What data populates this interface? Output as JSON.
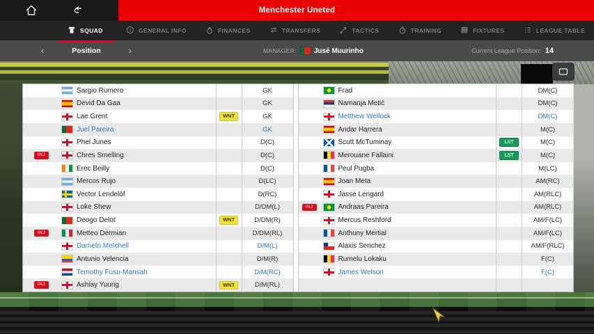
{
  "colors": {
    "brand_red": "#ea0000",
    "accent_red": "#d40c28",
    "link_blue": "#2f7ab8",
    "badge_yellow": "#f2e33c",
    "badge_green": "#17995b",
    "badge_red": "#cf1420"
  },
  "topbar": {
    "title": "Menchester Uneted"
  },
  "tabs": [
    {
      "id": "squad",
      "label": "SQUAD",
      "icon": "shirt",
      "active": true
    },
    {
      "id": "general-info",
      "label": "GENERAL INFO",
      "icon": "info",
      "active": false
    },
    {
      "id": "finances",
      "label": "FINANCES",
      "icon": "moneybag",
      "active": false
    },
    {
      "id": "transfers",
      "label": "TRANSFERS",
      "icon": "transfer-arrows",
      "active": false
    },
    {
      "id": "tactics",
      "label": "TACTICS",
      "icon": "tactics-arrows",
      "active": false
    },
    {
      "id": "training",
      "label": "TRAINING",
      "icon": "stopwatch",
      "active": false
    },
    {
      "id": "fixtures",
      "label": "FIXTURES",
      "icon": "stacked-list",
      "active": false
    },
    {
      "id": "league-table",
      "label": "LEAGUE TABLE",
      "icon": "bullet-list",
      "active": false
    }
  ],
  "subheader": {
    "prev": "‹",
    "pager_label": "Position",
    "next": "›",
    "manager_label": "MANAGER:",
    "manager_nation": "portugal",
    "manager_name": "Jusé Muurinho",
    "league_label": "Current League Position:",
    "league_value": "14"
  },
  "badges": {
    "wanted": "WNT",
    "listed": "LST",
    "injured": "INJ"
  },
  "squad": {
    "left": [
      {
        "name": "Sargio Rumero",
        "nation": "argentina",
        "pos": "GK",
        "badge": null,
        "status": null,
        "link": false
      },
      {
        "name": "Devid Da Gaa",
        "nation": "spain",
        "pos": "GK",
        "badge": null,
        "status": null,
        "link": false
      },
      {
        "name": "Lae Grent",
        "nation": "england",
        "pos": "GK",
        "badge": "WNT",
        "status": null,
        "link": false
      },
      {
        "name": "Juel Pareira",
        "nation": "portugal",
        "pos": "GK",
        "badge": null,
        "status": null,
        "link": true
      },
      {
        "name": "Phel Junes",
        "nation": "england",
        "pos": "D(C)",
        "badge": null,
        "status": null,
        "link": false
      },
      {
        "name": "Chres Smelling",
        "nation": "england",
        "pos": "D(C)",
        "badge": null,
        "status": "INJ",
        "link": false
      },
      {
        "name": "Erec Beilly",
        "nation": "ivory-coast",
        "pos": "D(C)",
        "badge": null,
        "status": null,
        "link": false
      },
      {
        "name": "Mercos Rujo",
        "nation": "argentina",
        "pos": "D(LC)",
        "badge": null,
        "status": null,
        "link": false
      },
      {
        "name": "Vector Lendelöf",
        "nation": "sweden",
        "pos": "D(RC)",
        "badge": null,
        "status": null,
        "link": false
      },
      {
        "name": "Loke Shew",
        "nation": "england",
        "pos": "D/DM(L)",
        "badge": null,
        "status": null,
        "link": false
      },
      {
        "name": "Deogo Delot",
        "nation": "portugal",
        "pos": "D/DM(R)",
        "badge": "WNT",
        "status": null,
        "link": false
      },
      {
        "name": "Metteo Dermian",
        "nation": "italy",
        "pos": "D/DM(RL)",
        "badge": null,
        "status": "INJ",
        "link": false
      },
      {
        "name": "Dametri Metchell",
        "nation": "england",
        "pos": "D/M(L)",
        "badge": null,
        "status": null,
        "link": true
      },
      {
        "name": "Antunio Velencia",
        "nation": "ecuador",
        "pos": "D/M(R)",
        "badge": null,
        "status": null,
        "link": false
      },
      {
        "name": "Temothy Fusu-Mansah",
        "nation": "netherlands",
        "pos": "D/M(RC)",
        "badge": null,
        "status": null,
        "link": true
      },
      {
        "name": "Ashlay Yuung",
        "nation": "england",
        "pos": "D/M(RL)",
        "badge": "WNT",
        "status": "INJ",
        "link": false
      }
    ],
    "right": [
      {
        "name": "Frad",
        "nation": "brazil",
        "pos": "DM(C)",
        "badge": null,
        "status": null,
        "link": false
      },
      {
        "name": "Namanja Metić",
        "nation": "serbia",
        "pos": "DM(C)",
        "badge": null,
        "status": null,
        "link": false
      },
      {
        "name": "Metthew Wellock",
        "nation": "england",
        "pos": "DM(C)",
        "badge": null,
        "status": null,
        "link": true
      },
      {
        "name": "Andar Harrera",
        "nation": "spain",
        "pos": "M(C)",
        "badge": null,
        "status": null,
        "link": false
      },
      {
        "name": "Scutt McTuminay",
        "nation": "scotland",
        "pos": "M(C)",
        "badge": "LST",
        "status": null,
        "link": false
      },
      {
        "name": "Merouane Fallaini",
        "nation": "belgium",
        "pos": "M(C)",
        "badge": "LST",
        "status": null,
        "link": false
      },
      {
        "name": "Peul Pugba",
        "nation": "france",
        "pos": "M(LC)",
        "badge": null,
        "status": null,
        "link": false
      },
      {
        "name": "Joan Meta",
        "nation": "spain",
        "pos": "AM(RC)",
        "badge": null,
        "status": null,
        "link": false
      },
      {
        "name": "Jasse Lengard",
        "nation": "england",
        "pos": "AM(RLC)",
        "badge": null,
        "status": null,
        "link": false
      },
      {
        "name": "Andraas Pareira",
        "nation": "brazil",
        "pos": "AM(RLC)",
        "badge": null,
        "status": "INJ",
        "link": false
      },
      {
        "name": "Mercus Reshford",
        "nation": "england",
        "pos": "AM/F(LC)",
        "badge": null,
        "status": null,
        "link": false
      },
      {
        "name": "Anthuny Mertial",
        "nation": "france",
        "pos": "AM/F(LC)",
        "badge": null,
        "status": null,
        "link": false
      },
      {
        "name": "Alaxis Senchez",
        "nation": "chile",
        "pos": "AM/F(RLC)",
        "badge": null,
        "status": null,
        "link": false
      },
      {
        "name": "Rumelu Lokaku",
        "nation": "belgium",
        "pos": "F(C)",
        "badge": null,
        "status": null,
        "link": false
      },
      {
        "name": "James Welson",
        "nation": "england",
        "pos": "F(C)",
        "badge": null,
        "status": null,
        "link": true
      },
      {
        "empty": true
      }
    ]
  }
}
